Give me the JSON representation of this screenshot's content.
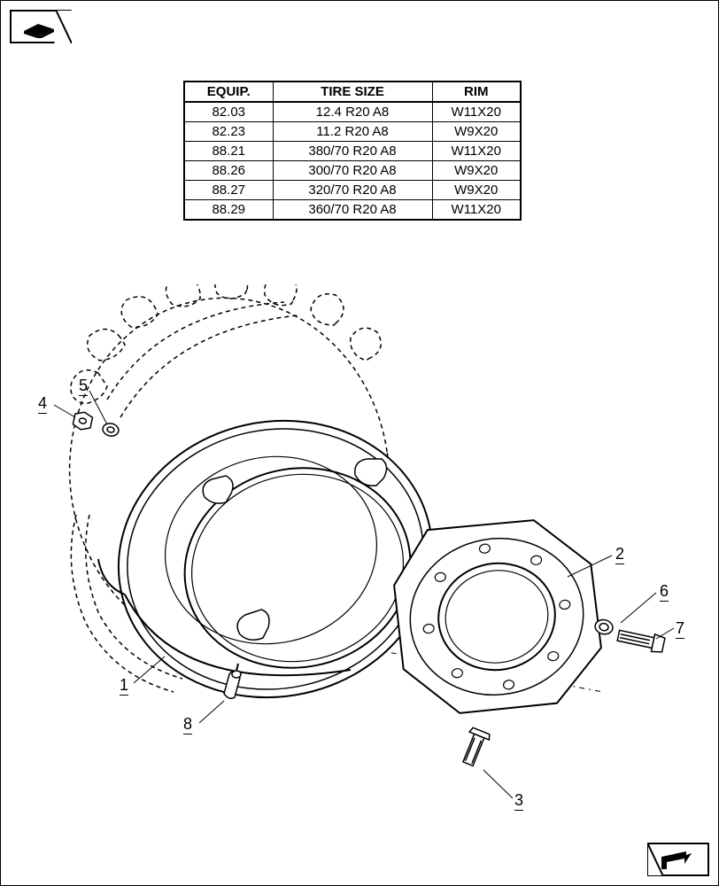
{
  "table": {
    "headers": [
      "EQUIP.",
      "TIRE SIZE",
      "RIM"
    ],
    "rows": [
      [
        "82.03",
        "12.4 R20 A8",
        "W11X20"
      ],
      [
        "82.23",
        "11.2 R20 A8",
        "W9X20"
      ],
      [
        "88.21",
        "380/70 R20 A8",
        "W11X20"
      ],
      [
        "88.26",
        "300/70 R20 A8",
        "W9X20"
      ],
      [
        "88.27",
        "320/70 R20 A8",
        "W9X20"
      ],
      [
        "88.29",
        "360/70 R20 A8",
        "W11X20"
      ]
    ]
  },
  "callouts": {
    "c1": "1",
    "c2": "2",
    "c3": "3",
    "c4": "4",
    "c5": "5",
    "c6": "6",
    "c7": "7",
    "c8": "8"
  },
  "diagram": {
    "stroke": "#000000",
    "fill": "#ffffff",
    "stroke_main": 2,
    "stroke_thin": 1
  }
}
